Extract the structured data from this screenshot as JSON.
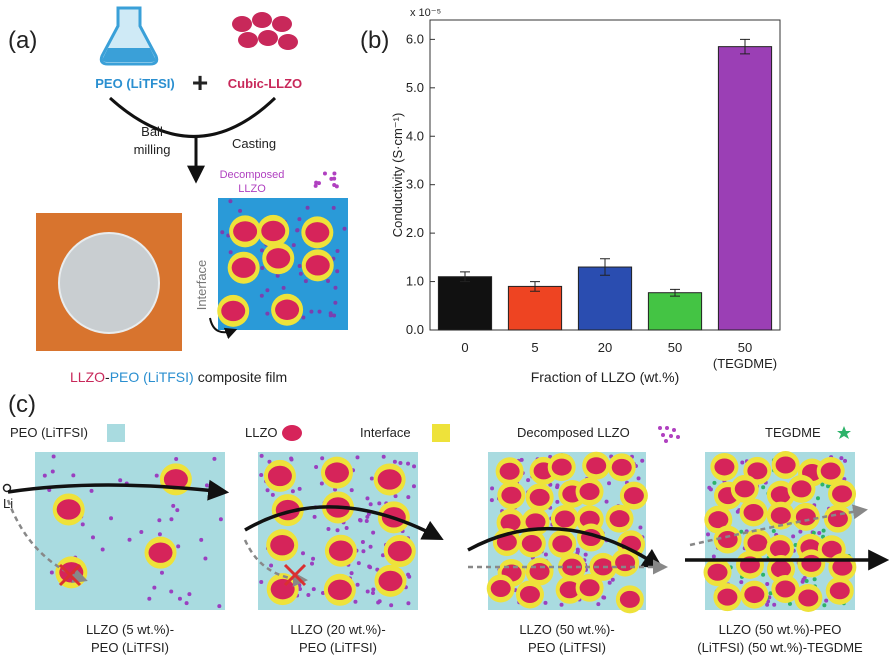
{
  "panel_a": {
    "label": "(a)",
    "peo": "PEO (LiTFSI)",
    "plus": "+",
    "llzo": "Cubic-LLZO",
    "ball_milling": [
      "Ball",
      "milling"
    ],
    "casting": "Casting",
    "decomposed": [
      "Decomposed",
      "LLZO"
    ],
    "interface": "Interface",
    "caption": [
      "LLZO",
      "-",
      "PEO (LiTFSI)",
      "composite film"
    ]
  },
  "chart_data": {
    "type": "bar",
    "panel_label": "(b)",
    "multiplier": "x 10⁻⁵",
    "ylabel": "Conductivity (S·cm⁻¹)",
    "xlabel": "Fraction of LLZO (wt.%)",
    "categories": [
      "0",
      "5",
      "20",
      "50",
      "50"
    ],
    "category_note": "(TEGDME)",
    "values": [
      1.1,
      0.9,
      1.3,
      0.77,
      5.85
    ],
    "errors": [
      0.1,
      0.1,
      0.17,
      0.07,
      0.15
    ],
    "colors": [
      "#111111",
      "#ee4422",
      "#2a4db0",
      "#44c444",
      "#9b3fb5"
    ],
    "ylim": [
      0,
      6.4
    ],
    "yticks": [
      {
        "value": 0,
        "label": "0.0"
      },
      {
        "value": 1,
        "label": "1.0"
      },
      {
        "value": 2,
        "label": "2.0"
      },
      {
        "value": 3,
        "label": "3.0"
      },
      {
        "value": 4,
        "label": "4.0"
      },
      {
        "value": 5,
        "label": "5.0"
      },
      {
        "value": 6,
        "label": "6.0"
      }
    ]
  },
  "panel_c": {
    "label": "(c)",
    "legend": [
      "PEO (LiTFSI)",
      "LLZO",
      "Interface",
      "Decomposed LLZO",
      "TEGDME"
    ],
    "li": "Li",
    "captions": [
      [
        "LLZO (5 wt.%)-",
        "PEO (LiTFSI)"
      ],
      [
        "LLZO (20 wt.%)-",
        "PEO (LiTFSI)"
      ],
      [
        "LLZO (50 wt.%)-",
        "PEO (LiTFSI)"
      ],
      [
        "LLZO (50 wt.%)-PEO",
        "(LiTFSI) (50 wt.%)-TEGDME"
      ]
    ]
  }
}
